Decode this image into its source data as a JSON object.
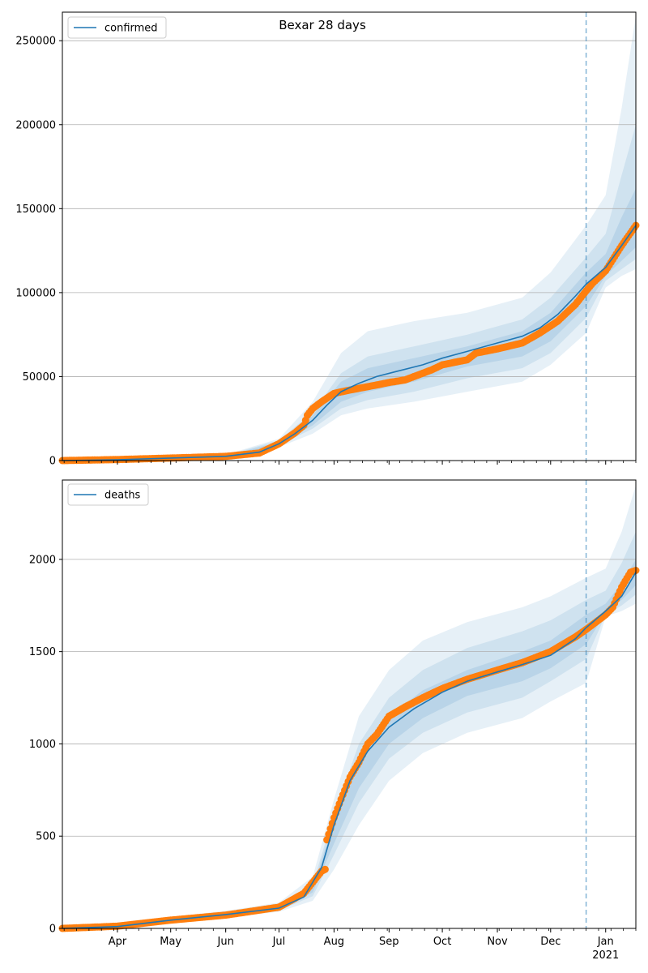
{
  "title": "Bexar 28 days",
  "colors": {
    "model": "#1f77b4",
    "observed": "#ff7f0e",
    "band": "#1f77b4",
    "grid": "#b0b0b0",
    "forecast_line": "#1f77b4"
  },
  "x_ticks": {
    "months": [
      {
        "label": "Apr",
        "date": "2020-04-01"
      },
      {
        "label": "May",
        "date": "2020-05-01"
      },
      {
        "label": "Jun",
        "date": "2020-06-01"
      },
      {
        "label": "Jul",
        "date": "2020-07-01"
      },
      {
        "label": "Aug",
        "date": "2020-08-01"
      },
      {
        "label": "Sep",
        "date": "2020-09-01"
      },
      {
        "label": "Oct",
        "date": "2020-10-01"
      },
      {
        "label": "Nov",
        "date": "2020-11-01"
      },
      {
        "label": "Dec",
        "date": "2020-12-01"
      },
      {
        "label": "Jan",
        "date": "2021-01-01"
      }
    ],
    "year_label": "2021"
  },
  "chart_data": [
    {
      "type": "line",
      "xlim": [
        "2020-03-01",
        "2021-01-18"
      ],
      "ylim": [
        0,
        267000
      ],
      "yticks": [
        0,
        50000,
        100000,
        150000,
        200000,
        250000
      ],
      "grid": "horizontal",
      "legend": {
        "position": "top-left",
        "entries": [
          "confirmed"
        ]
      },
      "forecast_start": "2020-12-21",
      "series": [
        {
          "name": "confirmed",
          "style": "line",
          "x": [
            "2020-03-01",
            "2020-04-01",
            "2020-05-01",
            "2020-06-01",
            "2020-06-20",
            "2020-07-01",
            "2020-07-10",
            "2020-07-20",
            "2020-07-28",
            "2020-08-05",
            "2020-08-15",
            "2020-08-25",
            "2020-09-05",
            "2020-09-20",
            "2020-10-01",
            "2020-10-15",
            "2020-11-01",
            "2020-11-15",
            "2020-11-25",
            "2020-12-05",
            "2020-12-15",
            "2020-12-21",
            "2021-01-01",
            "2021-01-10",
            "2021-01-18"
          ],
          "values": [
            0,
            500,
            1500,
            2500,
            5000,
            10000,
            16000,
            24000,
            33000,
            41000,
            46000,
            50000,
            53000,
            57000,
            61000,
            65000,
            70000,
            74000,
            79000,
            87000,
            98000,
            105000,
            115000,
            128000,
            140000
          ]
        }
      ],
      "observed": {
        "x": [
          "2020-03-01",
          "2020-04-01",
          "2020-05-01",
          "2020-06-01",
          "2020-06-20",
          "2020-07-01",
          "2020-07-10",
          "2020-07-15",
          "2020-07-17",
          "2020-07-20",
          "2020-07-25",
          "2020-08-01",
          "2020-08-10",
          "2020-08-20",
          "2020-08-25",
          "2020-09-01",
          "2020-09-10",
          "2020-09-15",
          "2020-09-25",
          "2020-10-01",
          "2020-10-15",
          "2020-10-20",
          "2020-11-01",
          "2020-11-15",
          "2020-11-25",
          "2020-12-05",
          "2020-12-15",
          "2020-12-21",
          "2020-12-25",
          "2021-01-01",
          "2021-01-10",
          "2021-01-18"
        ],
        "values": [
          0,
          600,
          1500,
          2500,
          4500,
          10000,
          16500,
          21000,
          27000,
          31000,
          35000,
          40000,
          42000,
          44000,
          45000,
          46500,
          48000,
          50000,
          54000,
          57000,
          60000,
          64000,
          66500,
          70000,
          76000,
          83000,
          93000,
          101000,
          106000,
          113000,
          128000,
          140000
        ]
      },
      "bands": [
        {
          "level": "outer",
          "x": [
            "2020-03-01",
            "2020-06-01",
            "2020-07-01",
            "2020-07-20",
            "2020-08-05",
            "2020-08-20",
            "2020-09-15",
            "2020-10-15",
            "2020-11-15",
            "2020-12-01",
            "2020-12-21",
            "2021-01-01",
            "2021-01-10",
            "2021-01-18"
          ],
          "lower": [
            0,
            1500,
            8000,
            16000,
            27000,
            31000,
            35000,
            41000,
            47000,
            57000,
            76000,
            103000,
            110000,
            114000
          ],
          "upper": [
            0,
            3500,
            13000,
            35000,
            64000,
            77000,
            83000,
            88000,
            97000,
            112000,
            140000,
            158000,
            210000,
            265000
          ]
        },
        {
          "level": "middle",
          "x": [
            "2020-03-01",
            "2020-06-01",
            "2020-07-01",
            "2020-07-20",
            "2020-08-05",
            "2020-08-20",
            "2020-09-15",
            "2020-10-15",
            "2020-11-15",
            "2020-12-01",
            "2020-12-21",
            "2021-01-01",
            "2021-01-10",
            "2021-01-18"
          ],
          "lower": [
            0,
            1800,
            9000,
            19000,
            31000,
            36000,
            41000,
            49000,
            55000,
            64000,
            85000,
            107000,
            114000,
            120000
          ],
          "upper": [
            0,
            3200,
            12000,
            29000,
            52000,
            62000,
            68000,
            75000,
            84000,
            97000,
            121000,
            135000,
            170000,
            200000
          ]
        },
        {
          "level": "inner",
          "x": [
            "2020-03-01",
            "2020-06-01",
            "2020-07-01",
            "2020-07-20",
            "2020-08-05",
            "2020-08-20",
            "2020-09-15",
            "2020-10-15",
            "2020-11-15",
            "2020-12-01",
            "2020-12-21",
            "2021-01-01",
            "2021-01-10",
            "2021-01-18"
          ],
          "lower": [
            0,
            2100,
            9500,
            21000,
            35000,
            41000,
            47000,
            56000,
            62000,
            71000,
            92000,
            110000,
            119000,
            127000
          ],
          "upper": [
            0,
            2900,
            11000,
            27000,
            47000,
            55000,
            61000,
            68000,
            77000,
            88000,
            112000,
            123000,
            145000,
            162000
          ]
        }
      ]
    },
    {
      "type": "line",
      "xlim": [
        "2020-03-01",
        "2021-01-18"
      ],
      "ylim": [
        0,
        2430
      ],
      "yticks": [
        0,
        500,
        1000,
        1500,
        2000
      ],
      "grid": "horizontal",
      "legend": {
        "position": "top-left",
        "entries": [
          "deaths"
        ]
      },
      "forecast_start": "2020-12-21",
      "series": [
        {
          "name": "deaths",
          "style": "line",
          "x": [
            "2020-03-01",
            "2020-04-01",
            "2020-05-01",
            "2020-06-01",
            "2020-07-01",
            "2020-07-15",
            "2020-07-25",
            "2020-08-01",
            "2020-08-10",
            "2020-08-20",
            "2020-09-01",
            "2020-09-15",
            "2020-10-01",
            "2020-10-15",
            "2020-11-01",
            "2020-11-15",
            "2020-12-01",
            "2020-12-15",
            "2020-12-21",
            "2021-01-01",
            "2021-01-10",
            "2021-01-18"
          ],
          "values": [
            0,
            10,
            45,
            75,
            110,
            170,
            330,
            560,
            800,
            960,
            1090,
            1190,
            1280,
            1340,
            1390,
            1430,
            1480,
            1570,
            1630,
            1720,
            1800,
            1930
          ]
        }
      ],
      "observed": {
        "x": [
          "2020-03-01",
          "2020-04-01",
          "2020-05-01",
          "2020-06-01",
          "2020-07-01",
          "2020-07-15",
          "2020-07-25",
          "2020-07-27",
          "2020-07-28",
          "2020-08-01",
          "2020-08-05",
          "2020-08-10",
          "2020-08-15",
          "2020-08-20",
          "2020-08-25",
          "2020-09-01",
          "2020-09-10",
          "2020-09-20",
          "2020-10-01",
          "2020-10-15",
          "2020-11-01",
          "2020-11-15",
          "2020-12-01",
          "2020-12-15",
          "2020-12-21",
          "2021-01-01",
          "2021-01-05",
          "2021-01-10",
          "2021-01-15",
          "2021-01-18"
        ],
        "values": [
          0,
          12,
          45,
          72,
          115,
          190,
          310,
          320,
          480,
          600,
          700,
          820,
          900,
          1000,
          1050,
          1150,
          1200,
          1250,
          1300,
          1350,
          1400,
          1440,
          1500,
          1580,
          1620,
          1700,
          1740,
          1850,
          1930,
          1940
        ]
      },
      "bands": [
        {
          "level": "outer",
          "x": [
            "2020-03-01",
            "2020-06-01",
            "2020-07-01",
            "2020-07-20",
            "2020-08-01",
            "2020-08-15",
            "2020-09-01",
            "2020-09-20",
            "2020-10-15",
            "2020-11-15",
            "2020-12-01",
            "2020-12-21",
            "2021-01-01",
            "2021-01-10",
            "2021-01-18"
          ],
          "lower": [
            0,
            60,
            90,
            150,
            320,
            560,
            800,
            950,
            1060,
            1140,
            1230,
            1330,
            1690,
            1720,
            1760
          ],
          "upper": [
            0,
            95,
            140,
            280,
            700,
            1150,
            1400,
            1560,
            1660,
            1740,
            1800,
            1900,
            1950,
            2150,
            2400
          ]
        },
        {
          "level": "middle",
          "x": [
            "2020-03-01",
            "2020-06-01",
            "2020-07-01",
            "2020-07-20",
            "2020-08-01",
            "2020-08-15",
            "2020-09-01",
            "2020-09-20",
            "2020-10-15",
            "2020-11-15",
            "2020-12-01",
            "2020-12-21",
            "2021-01-01",
            "2021-01-10",
            "2021-01-18"
          ],
          "lower": [
            0,
            65,
            97,
            175,
            400,
            680,
            920,
            1060,
            1170,
            1250,
            1340,
            1460,
            1700,
            1750,
            1810
          ],
          "upper": [
            0,
            88,
            128,
            240,
            620,
            1000,
            1250,
            1400,
            1520,
            1610,
            1670,
            1780,
            1830,
            1980,
            2150
          ]
        },
        {
          "level": "inner",
          "x": [
            "2020-03-01",
            "2020-06-01",
            "2020-07-01",
            "2020-07-20",
            "2020-08-01",
            "2020-08-15",
            "2020-09-01",
            "2020-09-20",
            "2020-10-15",
            "2020-11-15",
            "2020-12-01",
            "2020-12-21",
            "2021-01-01",
            "2021-01-10",
            "2021-01-18"
          ],
          "lower": [
            0,
            70,
            102,
            195,
            460,
            760,
            1000,
            1140,
            1260,
            1340,
            1410,
            1540,
            1710,
            1780,
            1860
          ],
          "upper": [
            0,
            82,
            120,
            220,
            580,
            920,
            1150,
            1290,
            1400,
            1500,
            1560,
            1700,
            1760,
            1870,
            2000
          ]
        }
      ]
    }
  ]
}
